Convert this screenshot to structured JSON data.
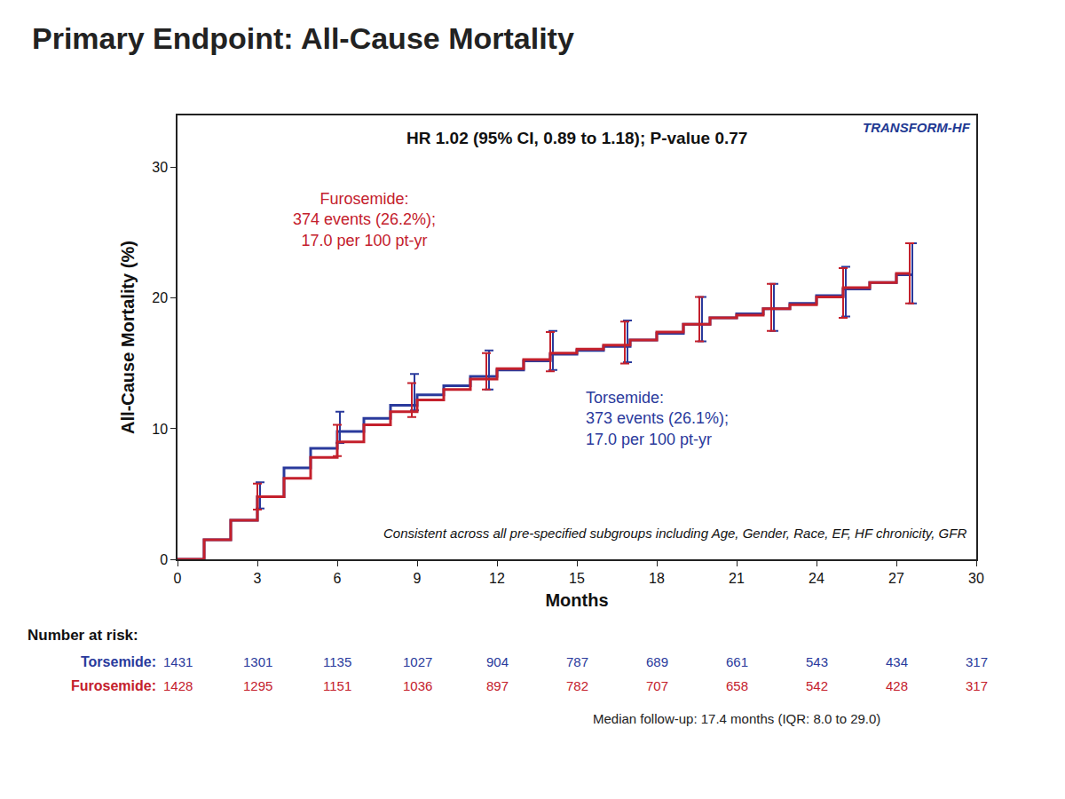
{
  "chart_data": {
    "type": "line",
    "title": "Primary Endpoint: All-Cause Mortality",
    "subtitle": "HR 1.02 (95% CI, 0.89 to 1.18); P-value 0.77",
    "logo": "TRANSFORM-HF",
    "x_label": "Months",
    "y_label": "All-Cause Mortality (%)",
    "xlim": [
      0,
      30
    ],
    "ylim": [
      0,
      34
    ],
    "xticks": [
      0,
      3,
      6,
      9,
      12,
      15,
      18,
      21,
      24,
      27,
      30
    ],
    "yticks": [
      0,
      10,
      20,
      30
    ],
    "grid": false,
    "line_style": "step",
    "series": [
      {
        "name": "Torsemide:",
        "color": "#2a3a9c",
        "events": "373 events (26.1%);",
        "rate": "17.0 per 100 pt-yr",
        "x": [
          0,
          1,
          2,
          3,
          4,
          5,
          6,
          7,
          8,
          9,
          10,
          11,
          12,
          13,
          14,
          15,
          16,
          17,
          18,
          19,
          20,
          21,
          22,
          23,
          24,
          25,
          26,
          27,
          27.6
        ],
        "values": [
          0,
          1.5,
          3,
          4.8,
          7,
          8.5,
          9.8,
          10.8,
          11.8,
          12.6,
          13.3,
          14,
          14.5,
          15.2,
          15.7,
          16,
          16.3,
          16.8,
          17.3,
          18,
          18.5,
          18.8,
          19.2,
          19.6,
          20.2,
          20.7,
          21.2,
          21.8,
          21.8
        ],
        "error_bars": {
          "x": [
            3.1,
            6.1,
            8.9,
            11.7,
            14.1,
            16.9,
            19.7,
            22.4,
            25.1,
            27.6
          ],
          "y": [
            4.9,
            10.1,
            12.8,
            14.5,
            16,
            16.7,
            18.4,
            19.3,
            20.5,
            21.9
          ],
          "error": [
            1,
            1.2,
            1.4,
            1.5,
            1.5,
            1.6,
            1.7,
            1.8,
            1.9,
            2.3
          ]
        }
      },
      {
        "name": "Furosemide:",
        "color": "#c4202c",
        "events": "374 events (26.2%);",
        "rate": "17.0 per 100 pt-yr",
        "x": [
          0,
          1,
          2,
          3,
          4,
          5,
          6,
          7,
          8,
          9,
          10,
          11,
          12,
          13,
          14,
          15,
          16,
          17,
          18,
          19,
          20,
          21,
          22,
          23,
          24,
          25,
          26,
          27,
          27.5
        ],
        "values": [
          0,
          1.5,
          3,
          4.8,
          6.2,
          7.8,
          9,
          10.3,
          11.3,
          12.2,
          13,
          13.8,
          14.6,
          15.3,
          15.8,
          16.1,
          16.4,
          16.8,
          17.4,
          18,
          18.5,
          18.7,
          19.2,
          19.5,
          20.1,
          20.8,
          21.2,
          21.9,
          21.9
        ],
        "error_bars": {
          "x": [
            3,
            6,
            8.8,
            11.6,
            14,
            16.8,
            19.6,
            22.3,
            25,
            27.5
          ],
          "y": [
            4.8,
            9.1,
            12.2,
            14.4,
            15.9,
            16.6,
            18.4,
            19.3,
            20.4,
            21.9
          ],
          "error": [
            1,
            1.2,
            1.3,
            1.4,
            1.5,
            1.6,
            1.7,
            1.8,
            1.9,
            2.3
          ]
        }
      }
    ],
    "note": "Consistent across all pre-specified subgroups including Age, Gender, Race, EF, HF chronicity, GFR",
    "number_at_risk": {
      "title": "Number at risk:",
      "x": [
        0,
        3,
        6,
        9,
        12,
        15,
        18,
        21,
        24,
        27,
        30
      ],
      "rows": [
        {
          "name": "Torsemide:",
          "values": [
            1431,
            1301,
            1135,
            1027,
            904,
            787,
            689,
            661,
            543,
            434,
            317
          ]
        },
        {
          "name": "Furosemide:",
          "values": [
            1428,
            1295,
            1151,
            1036,
            897,
            782,
            707,
            658,
            542,
            428,
            317
          ]
        }
      ]
    },
    "footnote": "Median follow-up: 17.4 months (IQR: 8.0 to 29.0)"
  }
}
